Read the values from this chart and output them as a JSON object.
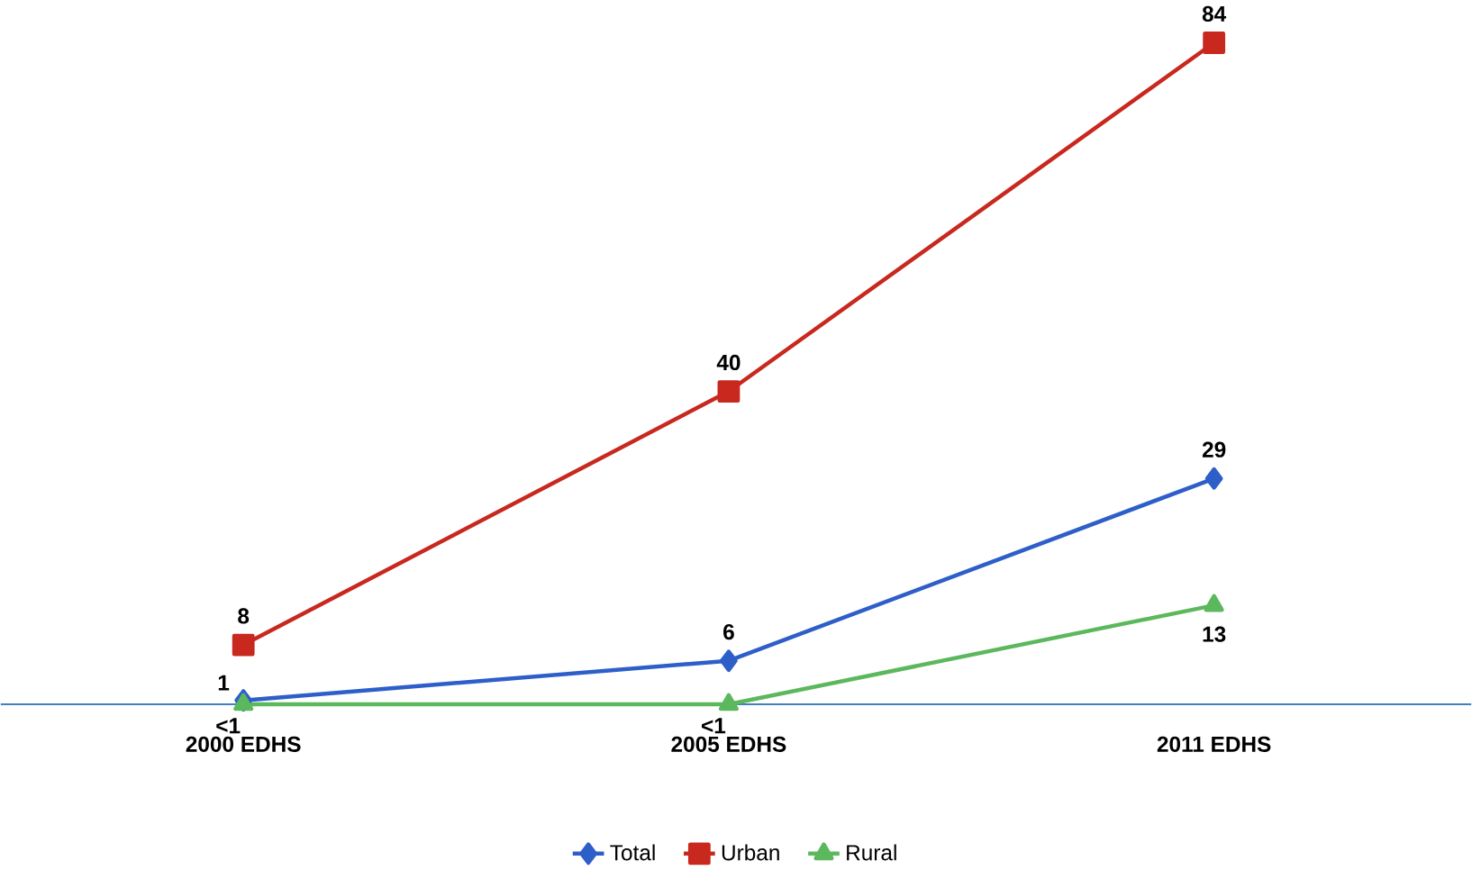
{
  "chart_data": {
    "type": "line",
    "categories": [
      "2000 EDHS",
      "2005 EDHS",
      "2011 EDHS"
    ],
    "series": [
      {
        "name": "Total",
        "color": "#2e5fc9",
        "marker": "diamond",
        "values": [
          1,
          6,
          29
        ],
        "value_labels": [
          "1",
          "6",
          "29"
        ]
      },
      {
        "name": "Urban",
        "color": "#c8281e",
        "marker": "square",
        "values": [
          8,
          40,
          84
        ],
        "value_labels": [
          "8",
          "40",
          "84"
        ]
      },
      {
        "name": "Rural",
        "color": "#5cb85c",
        "marker": "triangle",
        "values": [
          0.5,
          0.5,
          13
        ],
        "value_labels": [
          "<1",
          "<1",
          "13"
        ]
      }
    ],
    "legend": "bottom",
    "grid": false
  }
}
